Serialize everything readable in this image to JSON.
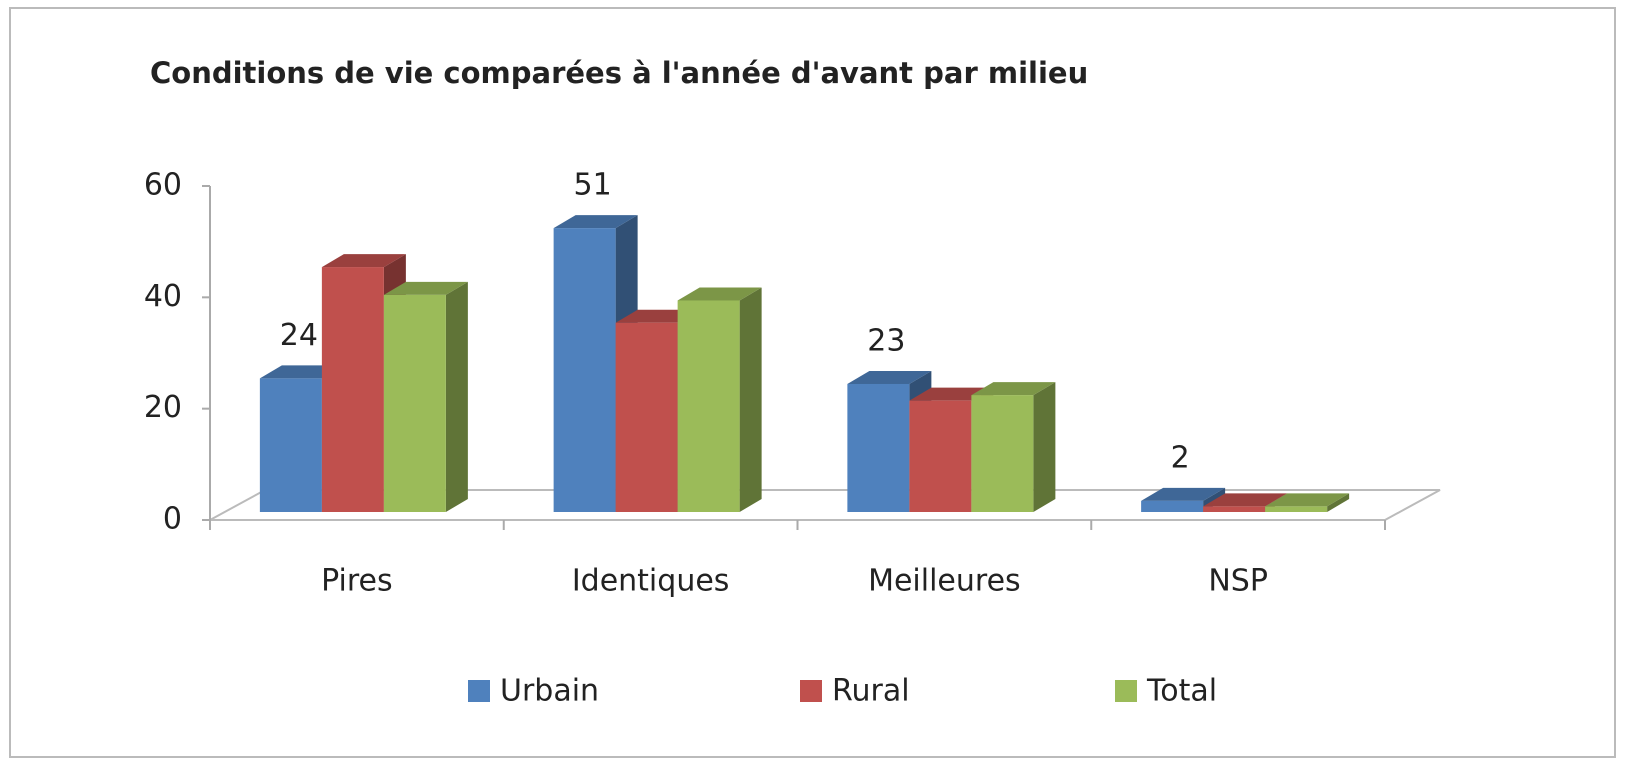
{
  "chart_data": {
    "type": "bar3d",
    "title": "Conditions de vie comparées à l'année d'avant par milieu",
    "categories": [
      "Pires",
      "Identiques",
      "Meilleures",
      "NSP"
    ],
    "series": [
      {
        "name": "Urbain",
        "color": "#4f81bd",
        "values": [
          24,
          51,
          23,
          2
        ],
        "data_labels": true
      },
      {
        "name": "Rural",
        "color": "#c0504d",
        "values": [
          44,
          34,
          20,
          1
        ],
        "data_labels": false
      },
      {
        "name": "Total",
        "color": "#9bbb59",
        "values": [
          39,
          38,
          21,
          1
        ],
        "data_labels": false
      }
    ],
    "ylim": [
      0,
      60
    ],
    "yticks": [
      0,
      20,
      40,
      60
    ],
    "legend": "bottom"
  }
}
